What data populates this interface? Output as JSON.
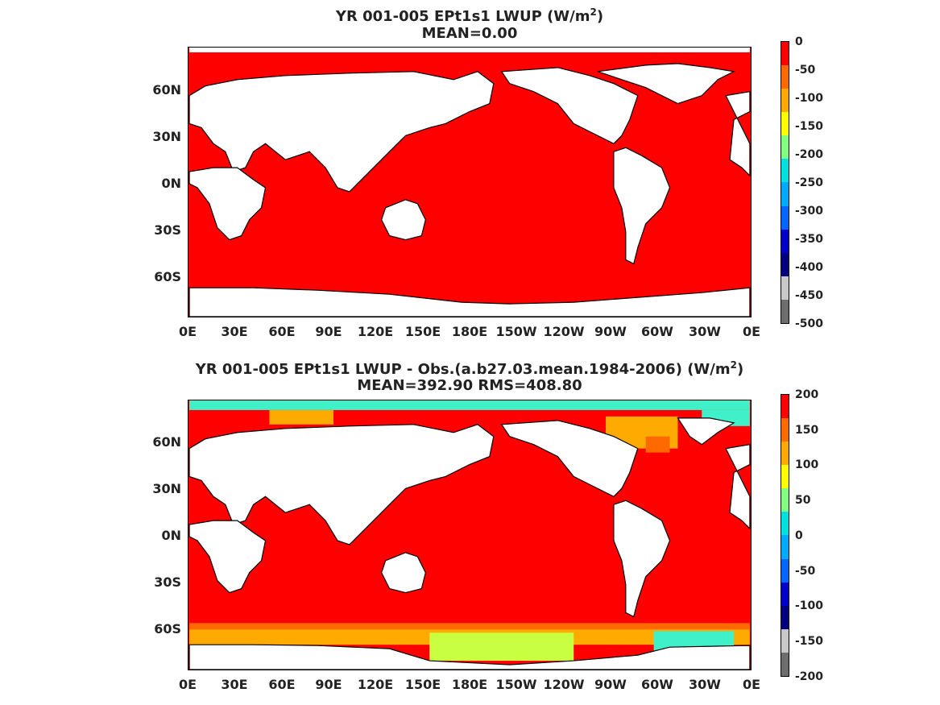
{
  "panels": [
    {
      "title_line1": "YR 001-005 EPt1s1  LWUP (W/m",
      "title_sup": "2",
      "title_close": ")",
      "title_line2": "MEAN=0.00",
      "colorbar_labels": [
        "0",
        "-50",
        "-100",
        "-150",
        "-200",
        "-250",
        "-300",
        "-350",
        "-400",
        "-450",
        "-500"
      ],
      "colorbar_colors": [
        "#ff0000",
        "#ff6a00",
        "#ffaa00",
        "#ffff00",
        "#80ff80",
        "#00e0e0",
        "#00aaff",
        "#0066ff",
        "#0000cc",
        "#000080",
        "#c8c8c8",
        "#6e6e6e"
      ]
    },
    {
      "title_line1": "YR 001-005 EPt1s1 LWUP - Obs.(a.b27.03.mean.1984-2006) (W/m",
      "title_sup": "2",
      "title_close": ")",
      "title_line2": "MEAN=392.90 RMS=408.80",
      "colorbar_labels": [
        "200",
        "150",
        "100",
        "50",
        "0",
        "-50",
        "-100",
        "-150",
        "-200"
      ],
      "colorbar_colors": [
        "#ff0000",
        "#ff6a00",
        "#ffaa00",
        "#ffff00",
        "#80ff80",
        "#00e0e0",
        "#00aaff",
        "#0066ff",
        "#0000cc",
        "#000080",
        "#c8c8c8",
        "#6e6e6e"
      ]
    }
  ],
  "x_ticks": [
    "0E",
    "30E",
    "60E",
    "90E",
    "120E",
    "150E",
    "180E",
    "150W",
    "120W",
    "90W",
    "60W",
    "30W",
    "0E"
  ],
  "y_ticks": [
    "60N",
    "30N",
    "0N",
    "30S",
    "60S"
  ]
}
